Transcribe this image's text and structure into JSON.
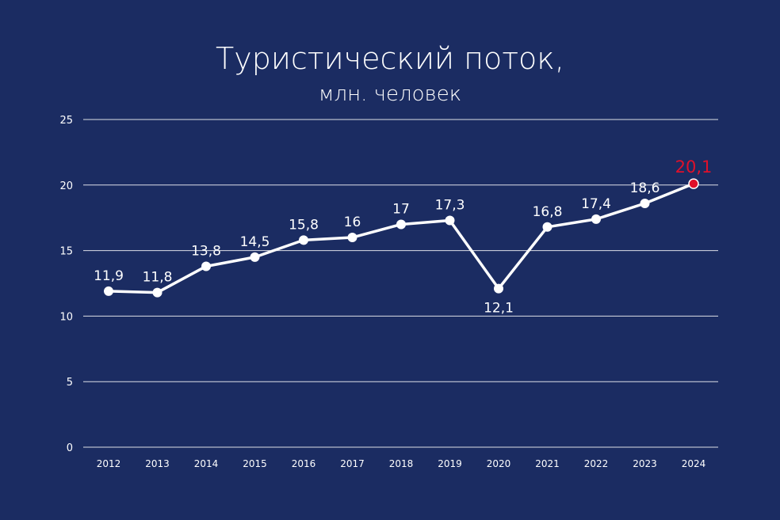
{
  "chart_data": {
    "type": "line",
    "title": "Туристический поток,",
    "subtitle": "млн. человек",
    "xlabel": "",
    "ylabel": "",
    "categories": [
      "2012",
      "2013",
      "2014",
      "2015",
      "2016",
      "2017",
      "2018",
      "2019",
      "2020",
      "2021",
      "2022",
      "2023",
      "2024"
    ],
    "values": [
      11.9,
      11.8,
      13.8,
      14.5,
      15.8,
      16,
      17,
      17.3,
      12.1,
      16.8,
      17.4,
      18.6,
      20.1
    ],
    "data_labels": [
      "11,9",
      "11,8",
      "13,8",
      "14,5",
      "15,8",
      "16",
      "17",
      "17,3",
      "12,1",
      "16,8",
      "17,4",
      "18,6",
      "20,1"
    ],
    "ylim": [
      0,
      25
    ],
    "yticks": [
      0,
      5,
      10,
      15,
      20,
      25
    ],
    "grid": true,
    "legend": "none",
    "colors": {
      "background": "#1b2c62",
      "line": "#ffffff",
      "highlight": "#e0102a",
      "grid": "#ffffff"
    }
  }
}
